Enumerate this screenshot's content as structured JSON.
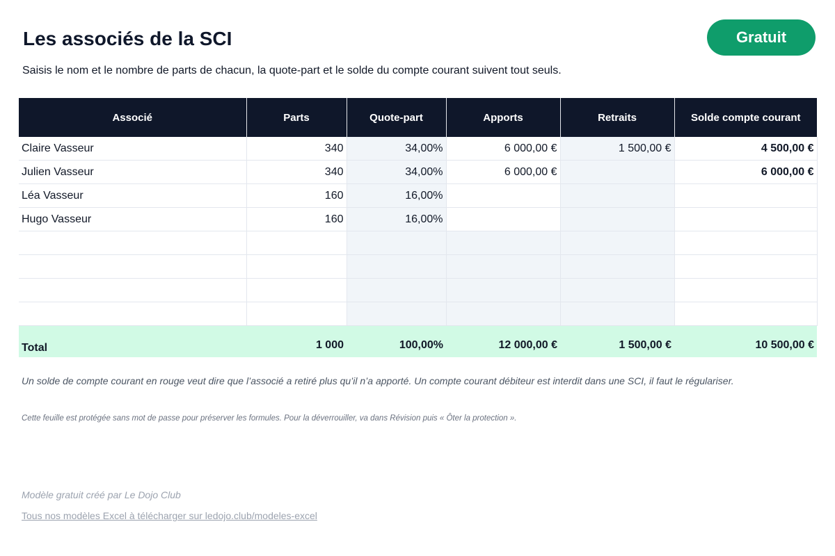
{
  "header": {
    "title": "Les associés de la SCI",
    "badge": "Gratuit",
    "subtitle": "Saisis le nom et le nombre de parts de chacun, la quote-part et le solde du compte courant suivent tout seuls."
  },
  "table": {
    "columns": [
      "Associé",
      "Parts",
      "Quote-part",
      "Apports",
      "Retraits",
      "Solde compte courant"
    ],
    "rows": [
      {
        "associe": "Claire Vasseur",
        "parts": "340",
        "quote_part": "34,00%",
        "apports": "6 000,00 €",
        "retraits": "1 500,00 €",
        "solde": "4 500,00 €"
      },
      {
        "associe": "Julien Vasseur",
        "parts": "340",
        "quote_part": "34,00%",
        "apports": "6 000,00 €",
        "retraits": "",
        "solde": "6 000,00 €"
      },
      {
        "associe": "Léa Vasseur",
        "parts": "160",
        "quote_part": "16,00%",
        "apports": "",
        "retraits": "",
        "solde": ""
      },
      {
        "associe": "Hugo Vasseur",
        "parts": "160",
        "quote_part": "16,00%",
        "apports": "",
        "retraits": "",
        "solde": ""
      },
      {
        "associe": "",
        "parts": "",
        "quote_part": "",
        "apports": "",
        "retraits": "",
        "solde": ""
      },
      {
        "associe": "",
        "parts": "",
        "quote_part": "",
        "apports": "",
        "retraits": "",
        "solde": ""
      },
      {
        "associe": "",
        "parts": "",
        "quote_part": "",
        "apports": "",
        "retraits": "",
        "solde": ""
      },
      {
        "associe": "",
        "parts": "",
        "quote_part": "",
        "apports": "",
        "retraits": "",
        "solde": ""
      }
    ],
    "total": {
      "label": "Total",
      "parts": "1 000",
      "quote_part": "100,00%",
      "apports": "12 000,00 €",
      "retraits": "1 500,00 €",
      "solde": "10 500,00 €"
    }
  },
  "notes": {
    "main": "Un solde de compte courant en rouge veut dire que l’associé a retiré plus qu’il n’a apporté. Un compte courant débiteur est interdit dans une SCI, il faut le régulariser.",
    "protection": "Cette feuille est protégée sans mot de passe pour préserver les formules. Pour la déverrouiller, va dans Révision puis « Ôter la protection ».",
    "credit": "Modèle gratuit créé par Le Dojo Club",
    "link": "Tous nos modèles Excel à télécharger sur ledojo.club/modeles-excel"
  },
  "colors": {
    "header_bg": "#0f172a",
    "badge_bg": "#0f9d6b",
    "total_bg": "#d1fae5",
    "computed_bg": "#f1f5f9"
  }
}
